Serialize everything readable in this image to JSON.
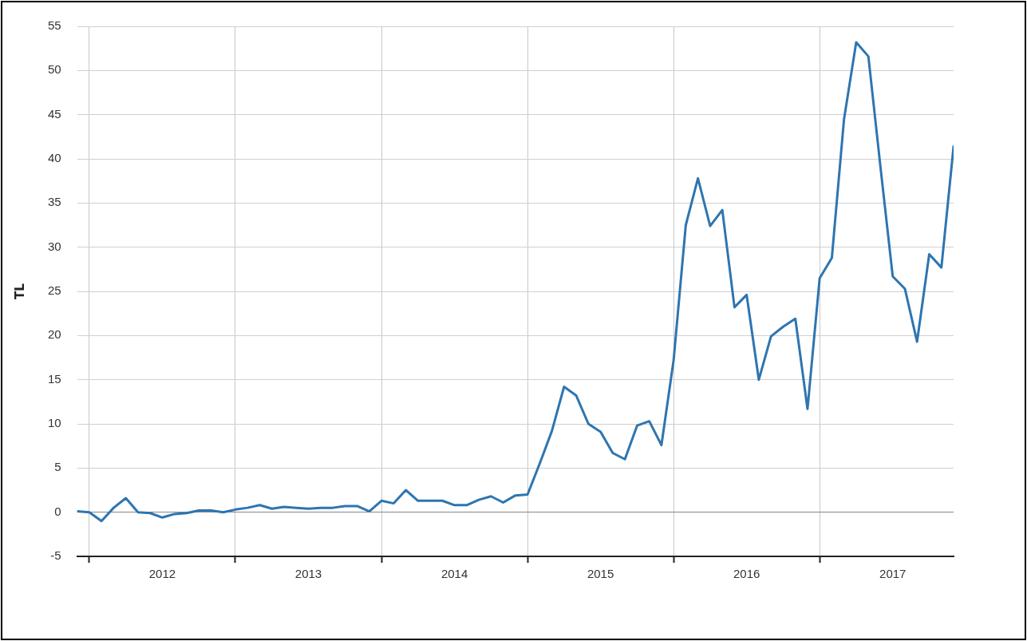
{
  "chart_data": {
    "type": "line",
    "ylabel": "TL",
    "x": [
      "2011-12",
      "2012-01",
      "2012-02",
      "2012-03",
      "2012-04",
      "2012-05",
      "2012-06",
      "2012-07",
      "2012-08",
      "2012-09",
      "2012-10",
      "2012-11",
      "2012-12",
      "2013-01",
      "2013-02",
      "2013-03",
      "2013-04",
      "2013-05",
      "2013-06",
      "2013-07",
      "2013-08",
      "2013-09",
      "2013-10",
      "2013-11",
      "2013-12",
      "2014-01",
      "2014-02",
      "2014-03",
      "2014-04",
      "2014-05",
      "2014-06",
      "2014-07",
      "2014-08",
      "2014-09",
      "2014-10",
      "2014-11",
      "2014-12",
      "2015-01",
      "2015-02",
      "2015-03",
      "2015-04",
      "2015-05",
      "2015-06",
      "2015-07",
      "2015-08",
      "2015-09",
      "2015-10",
      "2015-11",
      "2015-12",
      "2016-01",
      "2016-02",
      "2016-03",
      "2016-04",
      "2016-05",
      "2016-06",
      "2016-07",
      "2016-08",
      "2016-09",
      "2016-10",
      "2016-11",
      "2016-12",
      "2017-01",
      "2017-02",
      "2017-03",
      "2017-04",
      "2017-05",
      "2017-06",
      "2017-07",
      "2017-08",
      "2017-09",
      "2017-10",
      "2017-11",
      "2017-12"
    ],
    "series": [
      {
        "color": "#2e75b0",
        "values": [
          0.1,
          0,
          -1.0,
          0.5,
          1.6,
          0,
          -0.1,
          -0.6,
          -0.2,
          -0.1,
          0.2,
          0.2,
          0,
          0.3,
          0.5,
          0.8,
          0.4,
          0.6,
          0.5,
          0.4,
          0.5,
          0.5,
          0.7,
          0.7,
          0.1,
          1.3,
          1.0,
          2.5,
          1.3,
          1.3,
          1.3,
          0.8,
          0.8,
          1.4,
          1.8,
          1.1,
          1.9,
          2.0,
          5.5,
          9.2,
          14.2,
          13.2,
          10.0,
          9.1,
          6.7,
          6.0,
          9.8,
          10.3,
          7.6,
          17.2,
          32.5,
          37.8,
          32.4,
          34.2,
          23.2,
          24.6,
          15.0,
          19.9,
          21.0,
          21.9,
          11.7,
          26.5,
          28.8,
          44.5,
          53.2,
          51.6,
          39,
          26.7,
          25.3,
          19.3,
          29.2,
          27.7,
          41.4
        ]
      }
    ],
    "xlim": [
      "2011-12",
      "2017-12"
    ],
    "xticks": [
      {
        "value": "2012-01",
        "label": null
      },
      {
        "value": "2012-07",
        "label": "2012"
      },
      {
        "value": "2013-01",
        "label": null
      },
      {
        "value": "2013-07",
        "label": "2013"
      },
      {
        "value": "2014-01",
        "label": null
      },
      {
        "value": "2014-07",
        "label": "2014"
      },
      {
        "value": "2015-01",
        "label": null
      },
      {
        "value": "2015-07",
        "label": "2015"
      },
      {
        "value": "2016-01",
        "label": null
      },
      {
        "value": "2016-07",
        "label": "2016"
      },
      {
        "value": "2017-01",
        "label": null
      },
      {
        "value": "2017-07",
        "label": "2017"
      }
    ],
    "ylim": [
      -5,
      55
    ],
    "yticks": [
      -5,
      0,
      5,
      10,
      15,
      20,
      25,
      30,
      35,
      40,
      45,
      50,
      55
    ],
    "grid": true,
    "legend": false,
    "marker": "none",
    "line_style": "solid"
  }
}
